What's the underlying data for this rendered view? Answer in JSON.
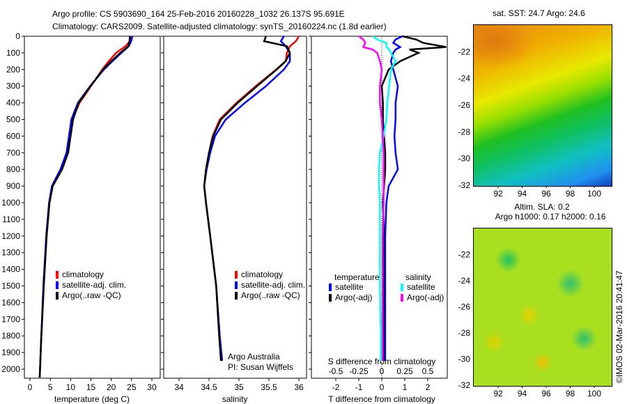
{
  "title": {
    "line1": "Argo profile: CS 5903690_164 25-Feb-2016 20160228_1032 26.137S 95.691E",
    "line2": "Climatology: CARS2009. Satellite-adjusted climatology: synTS_20160224.nc (1.8d earlier)"
  },
  "credit": "©IMOS 02-Mar-2016 20:41:47",
  "colors": {
    "climatology": "#ff0000",
    "satellite": "#0000ff",
    "argo": "#000000",
    "sal_sat": "#00ffff",
    "sal_argo": "#ff00ff"
  },
  "chart_data": [
    {
      "type": "line",
      "xlabel": "temperature (deg C)",
      "ylabel": "depth",
      "xlim": [
        -1,
        31
      ],
      "ylim": [
        2060,
        0
      ],
      "xticks": [
        "0",
        "5",
        "10",
        "15",
        "20",
        "25",
        "30"
      ],
      "yticks": [
        "0",
        "100",
        "200",
        "300",
        "400",
        "500",
        "600",
        "700",
        "800",
        "900",
        "1000",
        "1100",
        "1200",
        "1300",
        "1400",
        "1500",
        "1600",
        "1700",
        "1800",
        "1900",
        "2000"
      ],
      "legend": [
        "climatology",
        "satellite-adj. clim.",
        "Argo(..raw -QC)"
      ],
      "depth": [
        0,
        30,
        60,
        100,
        150,
        200,
        300,
        400,
        500,
        600,
        700,
        800,
        900,
        1000,
        1200,
        1500,
        1800,
        2050
      ],
      "series": [
        {
          "name": "climatology",
          "values": [
            25,
            24.6,
            23.5,
            21.2,
            19.4,
            17.8,
            15,
            12.2,
            10.4,
            9.8,
            9.2,
            7.7,
            5.5,
            4.8,
            4.1,
            3.4,
            2.8,
            2.4
          ]
        },
        {
          "name": "satellite-adj. clim.",
          "values": [
            25.2,
            24.9,
            24.3,
            22.5,
            20.3,
            18.2,
            14.8,
            11.8,
            10.2,
            9.6,
            9,
            7.5,
            5.4,
            4.7,
            4.0,
            3.3,
            2.8,
            2.4
          ]
        },
        {
          "name": "Argo(..raw -QC)",
          "values": [
            24.6,
            24.5,
            24.2,
            22.2,
            20,
            18,
            14.9,
            12,
            10.6,
            10,
            9.4,
            7.9,
            5.6,
            4.8,
            4.1,
            3.4,
            2.8,
            2.4
          ]
        }
      ]
    },
    {
      "type": "line",
      "xlabel": "salinity",
      "xlim": [
        33.8,
        36.1
      ],
      "ylim": [
        2060,
        0
      ],
      "xticks": [
        "34",
        "34.5",
        "35",
        "35.5",
        "36"
      ],
      "legend": [
        "climatology",
        "satellite-adj. clim.",
        "Argo(..raw -QC)"
      ],
      "annotation": [
        "Argo Australia",
        "PI: Susan Wijffels"
      ],
      "depth": [
        0,
        30,
        60,
        100,
        150,
        200,
        300,
        400,
        500,
        600,
        700,
        800,
        900,
        1000,
        1200,
        1500,
        1800,
        1950
      ],
      "series": [
        {
          "name": "climatology",
          "values": [
            36,
            35.95,
            35.85,
            35.8,
            35.78,
            35.62,
            35.28,
            34.96,
            34.68,
            34.56,
            34.5,
            34.45,
            34.42,
            34.45,
            34.52,
            34.62,
            34.67,
            34.7
          ]
        },
        {
          "name": "satellite-adj. clim.",
          "values": [
            35.75,
            35.7,
            35.78,
            35.85,
            35.85,
            35.75,
            35.45,
            35.1,
            34.78,
            34.6,
            34.52,
            34.46,
            34.42,
            34.45,
            34.52,
            34.62,
            34.68,
            34.72
          ]
        },
        {
          "name": "Argo(..raw -QC)",
          "values": [
            35.45,
            35.42,
            35.8,
            35.85,
            35.78,
            35.63,
            35.3,
            34.98,
            34.7,
            34.57,
            34.5,
            34.45,
            34.42,
            34.45,
            34.52,
            34.62,
            34.67,
            34.7
          ]
        }
      ]
    },
    {
      "type": "line",
      "xlabel": "T difference from climatology",
      "x2label": "S difference from climatology",
      "xlim": [
        -3,
        3
      ],
      "xticks": [
        "-2",
        "-1",
        "0",
        "1",
        "2"
      ],
      "x2ticks": [
        "-0.5",
        "-0.25",
        "0",
        "0.25",
        "0.5"
      ],
      "legend_t": {
        "title": "temperature",
        "items": [
          "satellite",
          "Argo(-adj)"
        ]
      },
      "legend_s": {
        "title": "salinity",
        "items": [
          "satellite",
          "Argo(-adj)"
        ]
      },
      "depth": [
        0,
        20,
        40,
        65,
        80,
        100,
        150,
        200,
        300,
        400,
        500,
        600,
        700,
        800,
        900,
        1000,
        1200,
        1500,
        1800,
        1950
      ],
      "series": [
        {
          "name": "T satellite",
          "values": [
            0.9,
            0.6,
            0.5,
            0.8,
            0.6,
            0.5,
            0.4,
            0.5,
            0.7,
            0.6,
            0.6,
            0.55,
            0.6,
            0.7,
            0.3,
            0.2,
            0.15,
            0.15,
            0.15,
            0.15
          ]
        },
        {
          "name": "T Argo(-adj)",
          "values": [
            0.9,
            1.5,
            1.8,
            2.8,
            1.2,
            1.6,
            0.8,
            0.3,
            0,
            0.05,
            0.05,
            0.1,
            0.15,
            0.15,
            0.1,
            0.05,
            0.1,
            0.1,
            0.1,
            0.1
          ]
        },
        {
          "name": "S satellite",
          "values": [
            -0.1,
            -0.05,
            0.05,
            0.05,
            0.08,
            0.1,
            0.15,
            0.1,
            0.08,
            0.06,
            0.05,
            0.02,
            -0.02,
            -0.03,
            -0.03,
            -0.02,
            -0.02,
            -0.02,
            -0.01,
            -0.01
          ]
        },
        {
          "name": "S Argo(-adj)",
          "values": [
            -0.25,
            -0.2,
            -0.18,
            -0.2,
            -0.1,
            -0.05,
            -0.02,
            0,
            -0.02,
            -0.02,
            0,
            0.01,
            0.02,
            0.02,
            0.02,
            0.02,
            0.01,
            0.01,
            0.01,
            0.01
          ]
        }
      ]
    },
    {
      "type": "heatmap",
      "title": "sat. SST: 24.7 Argo: 24.6",
      "xticks": [
        "92",
        "94",
        "96",
        "98",
        "100"
      ],
      "yticks": [
        "-22",
        "-24",
        "-26",
        "-28",
        "-30",
        "-32"
      ]
    },
    {
      "type": "heatmap",
      "title": [
        "Altim. SLA: 0.2",
        "Argo h1000: 0.17 h2000: 0.16"
      ],
      "xticks": [
        "92",
        "94",
        "96",
        "98",
        "100"
      ],
      "yticks": [
        "-22",
        "-24",
        "-26",
        "-28",
        "-30",
        "-32"
      ]
    }
  ]
}
